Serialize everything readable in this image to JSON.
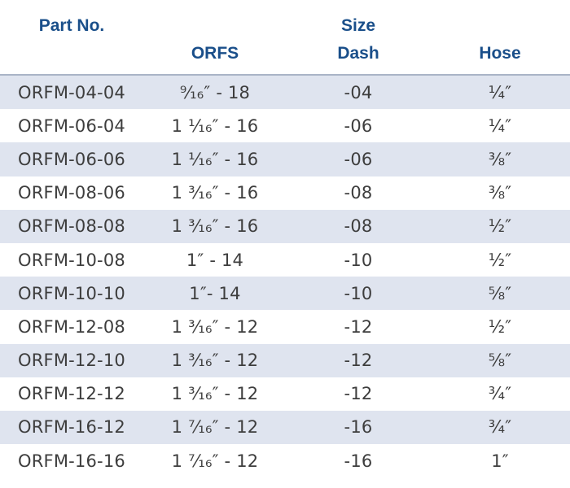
{
  "headers": {
    "part_no": "Part No.",
    "orfs": "ORFS",
    "size": "Size",
    "dash": "Dash",
    "hose": "Hose"
  },
  "rows": [
    {
      "part": "ORFM-04-04",
      "orfs": "⁹⁄₁₆″ - 18",
      "dash": "-04",
      "hose": "¼″"
    },
    {
      "part": "ORFM-06-04",
      "orfs": "1 ¹⁄₁₆″ - 16",
      "dash": "-06",
      "hose": "¼″"
    },
    {
      "part": "ORFM-06-06",
      "orfs": "1 ¹⁄₁₆″ - 16",
      "dash": "-06",
      "hose": "⅜″"
    },
    {
      "part": "ORFM-08-06",
      "orfs": "1 ³⁄₁₆″ - 16",
      "dash": "-08",
      "hose": "⅜″"
    },
    {
      "part": "ORFM-08-08",
      "orfs": "1 ³⁄₁₆″ - 16",
      "dash": "-08",
      "hose": "½″"
    },
    {
      "part": "ORFM-10-08",
      "orfs": "1″ - 14",
      "dash": "-10",
      "hose": "½″"
    },
    {
      "part": "ORFM-10-10",
      "orfs": "1″- 14",
      "dash": "-10",
      "hose": "⅝″"
    },
    {
      "part": "ORFM-12-08",
      "orfs": "1 ³⁄₁₆″ - 12",
      "dash": "-12",
      "hose": "½″"
    },
    {
      "part": "ORFM-12-10",
      "orfs": "1 ³⁄₁₆″ - 12",
      "dash": "-12",
      "hose": "⅝″"
    },
    {
      "part": "ORFM-12-12",
      "orfs": "1 ³⁄₁₆″ - 12",
      "dash": "-12",
      "hose": "¾″"
    },
    {
      "part": "ORFM-16-12",
      "orfs": "1 ⁷⁄₁₆″ - 12",
      "dash": "-16",
      "hose": "¾″"
    },
    {
      "part": "ORFM-16-16",
      "orfs": "1 ⁷⁄₁₆″ - 12",
      "dash": "-16",
      "hose": "1″"
    }
  ],
  "colors": {
    "header_text": "#1a4f8a",
    "row_shade": "#dfe4ef",
    "body_text": "#3d3d3d",
    "divider": "#aab4c6"
  }
}
